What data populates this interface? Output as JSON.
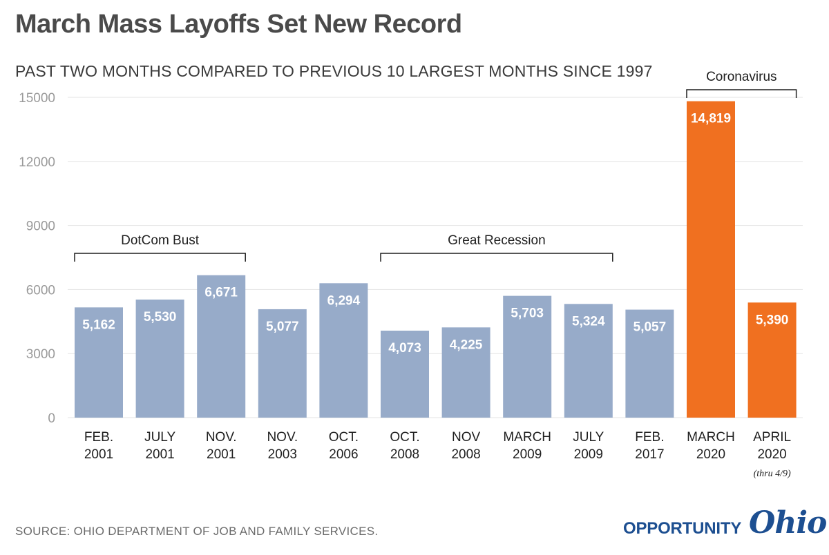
{
  "title": "March Mass Layoffs Set New Record",
  "subtitle": "PAST TWO MONTHS COMPARED TO PREVIOUS 10 LARGEST MONTHS SINCE 1997",
  "source": "SOURCE: OHIO DEPARTMENT OF JOB AND FAMILY SERVICES.",
  "logo": {
    "word": "OPPORTUNITY",
    "script": "Ohio"
  },
  "colors": {
    "bar": "#97abc9",
    "highlight": "#f07020",
    "grid": "#e3e3e3",
    "axis_text": "#9a9a9a"
  },
  "chart_data": {
    "type": "bar",
    "ylim": [
      0,
      15000
    ],
    "yticks": [
      "0",
      "3000",
      "6000",
      "9000",
      "12000",
      "15000"
    ],
    "grid": true,
    "categories": [
      [
        "FEB.",
        "2001"
      ],
      [
        "JULY",
        "2001"
      ],
      [
        "NOV.",
        "2001"
      ],
      [
        "NOV.",
        "2003"
      ],
      [
        "OCT.",
        "2006"
      ],
      [
        "OCT.",
        "2008"
      ],
      [
        "NOV",
        "2008"
      ],
      [
        "MARCH",
        "2009"
      ],
      [
        "JULY",
        "2009"
      ],
      [
        "FEB.",
        "2017"
      ],
      [
        "MARCH",
        "2020"
      ],
      [
        "APRIL",
        "2020"
      ]
    ],
    "values": [
      5162,
      5530,
      6671,
      5077,
      6294,
      4073,
      4225,
      5703,
      5324,
      5057,
      14819,
      5390
    ],
    "value_labels": [
      "5,162",
      "5,530",
      "6,671",
      "5,077",
      "6,294",
      "4,073",
      "4,225",
      "5,703",
      "5,324",
      "5,057",
      "14,819",
      "5,390"
    ],
    "highlighted": [
      false,
      false,
      false,
      false,
      false,
      false,
      false,
      false,
      false,
      false,
      true,
      true
    ],
    "annotations": [
      {
        "text": "DotCom Bust",
        "from": 0,
        "to": 2
      },
      {
        "text": "Great Recession",
        "from": 5,
        "to": 8
      },
      {
        "text": "Coronavirus",
        "from": 10,
        "to": 11
      }
    ],
    "notes": [
      {
        "index": 11,
        "text": "(thru 4/9)"
      }
    ]
  }
}
